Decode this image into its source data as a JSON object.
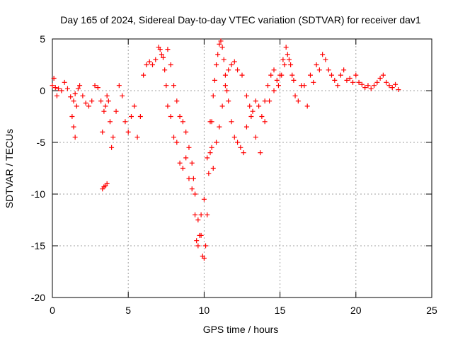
{
  "chart_data": {
    "type": "scatter",
    "title": "Day 165 of 2024, Sidereal Day-to-day VTEC variation (SDTVAR) for receiver dav1",
    "xlabel": "GPS time / hours",
    "ylabel": "SDTVAR / TECUs",
    "xlim": [
      0,
      25
    ],
    "ylim": [
      -20,
      5
    ],
    "xticks": [
      0,
      5,
      10,
      15,
      20,
      25
    ],
    "yticks": [
      -20,
      -15,
      -10,
      -5,
      0,
      5
    ],
    "grid": true,
    "marker": "+",
    "color": "#ff0000",
    "series": [
      {
        "name": "SDTVAR",
        "x": [
          0.0,
          0.1,
          0.2,
          0.3,
          0.4,
          0.6,
          0.8,
          1.0,
          1.2,
          1.4,
          1.5,
          1.6,
          1.7,
          1.8,
          2.0,
          2.2,
          2.4,
          2.6,
          2.8,
          3.0,
          3.2,
          3.3,
          3.4,
          3.5,
          3.6,
          3.7,
          3.8,
          3.9,
          4.0,
          4.2,
          4.4,
          4.6,
          4.8,
          5.0,
          5.2,
          5.4,
          5.6,
          5.8,
          6.0,
          6.2,
          6.4,
          6.6,
          6.8,
          7.0,
          7.1,
          7.2,
          7.3,
          7.4,
          7.5,
          7.6,
          7.8,
          8.0,
          8.2,
          8.4,
          8.6,
          8.8,
          9.0,
          9.2,
          9.4,
          9.5,
          9.6,
          9.7,
          9.8,
          9.9,
          10.0,
          10.1,
          10.2,
          10.3,
          10.4,
          10.5,
          10.6,
          10.7,
          10.8,
          10.9,
          11.0,
          11.1,
          11.2,
          11.3,
          11.4,
          11.5,
          11.6,
          11.8,
          12.0,
          12.2,
          12.4,
          12.6,
          12.8,
          13.0,
          13.2,
          13.4,
          13.6,
          13.8,
          14.0,
          14.2,
          14.4,
          14.6,
          14.8,
          15.0,
          15.2,
          15.4,
          15.6,
          15.8,
          16.0,
          16.2,
          16.4,
          16.6,
          16.8,
          17.0,
          17.2,
          17.4,
          17.6,
          17.8,
          18.0,
          18.2,
          18.4,
          18.6,
          18.8,
          19.0,
          19.2,
          19.4,
          19.6,
          19.8,
          20.0,
          20.2,
          20.4,
          20.6,
          20.8,
          21.0,
          21.2,
          21.4,
          21.6,
          21.8,
          22.0,
          22.2,
          22.4,
          22.6,
          22.8,
          1.3,
          1.4,
          1.5,
          3.3,
          3.4,
          3.5,
          3.6,
          7.6,
          7.8,
          8.0,
          8.2,
          8.4,
          8.6,
          8.8,
          9.0,
          9.2,
          9.3,
          9.4,
          9.6,
          9.8,
          10.0,
          10.2,
          10.4,
          10.5,
          10.6,
          10.8,
          11.0,
          11.2,
          11.4,
          11.6,
          11.8,
          12.0,
          12.2,
          12.5,
          12.8,
          13.1,
          13.4,
          13.7,
          14.0,
          14.3,
          14.6,
          14.9,
          15.1,
          15.3,
          15.5,
          15.7,
          15.9
        ],
        "y": [
          0.5,
          1.2,
          0.3,
          -0.5,
          0.2,
          0.0,
          0.8,
          0.2,
          -0.6,
          -1.0,
          -0.3,
          -1.5,
          0.2,
          0.5,
          -0.5,
          -1.2,
          -1.5,
          -1.0,
          0.5,
          0.3,
          -1.0,
          -4.0,
          -2.0,
          -1.5,
          -0.5,
          -1.0,
          -3.0,
          -5.5,
          -4.5,
          -2.0,
          0.5,
          -0.5,
          -3.0,
          -4.0,
          -2.5,
          -1.5,
          -4.5,
          -2.5,
          1.5,
          2.5,
          2.8,
          2.5,
          3.0,
          4.2,
          4.0,
          3.5,
          3.2,
          2.0,
          0.5,
          -1.5,
          -2.5,
          -4.5,
          -5.0,
          -7.0,
          -7.5,
          -6.5,
          -8.5,
          -9.5,
          -12.0,
          -14.5,
          -15.0,
          -14.0,
          -12.0,
          -16.0,
          -16.2,
          -15.0,
          -12.0,
          -8.0,
          -6.0,
          -3.0,
          -0.5,
          1.0,
          2.5,
          3.5,
          4.5,
          4.8,
          4.2,
          3.0,
          1.5,
          0.0,
          -1.0,
          -3.0,
          -4.5,
          -5.0,
          -5.5,
          -6.0,
          -3.5,
          -1.5,
          -2.0,
          -1.0,
          -1.5,
          -2.5,
          -1.0,
          0.5,
          1.5,
          2.0,
          1.0,
          1.5,
          3.0,
          4.2,
          3.0,
          1.5,
          -0.5,
          -1.0,
          0.5,
          0.5,
          -1.5,
          1.5,
          0.8,
          2.5,
          2.0,
          3.5,
          3.0,
          2.0,
          1.5,
          1.0,
          0.5,
          1.5,
          2.0,
          1.0,
          1.2,
          0.8,
          1.5,
          0.8,
          0.6,
          0.3,
          0.5,
          0.2,
          0.5,
          0.8,
          1.2,
          1.5,
          0.8,
          0.5,
          0.3,
          0.6,
          0.1,
          -2.5,
          -3.5,
          -4.5,
          -9.5,
          -9.3,
          -9.2,
          -9.0,
          4.0,
          2.5,
          0.5,
          -1.0,
          -2.5,
          -3.0,
          -4.0,
          -5.5,
          -7.0,
          -8.5,
          -10.0,
          -12.5,
          -14.0,
          -10.5,
          -6.5,
          -3.0,
          -5.5,
          -7.5,
          -5.0,
          -3.5,
          -1.5,
          0.5,
          2.0,
          2.5,
          2.8,
          2.0,
          1.5,
          -0.5,
          -2.5,
          -4.5,
          -6.0,
          -3.0,
          -1.0,
          0.0,
          0.5,
          1.5,
          2.5,
          3.5,
          2.5,
          1.0
        ]
      }
    ]
  }
}
